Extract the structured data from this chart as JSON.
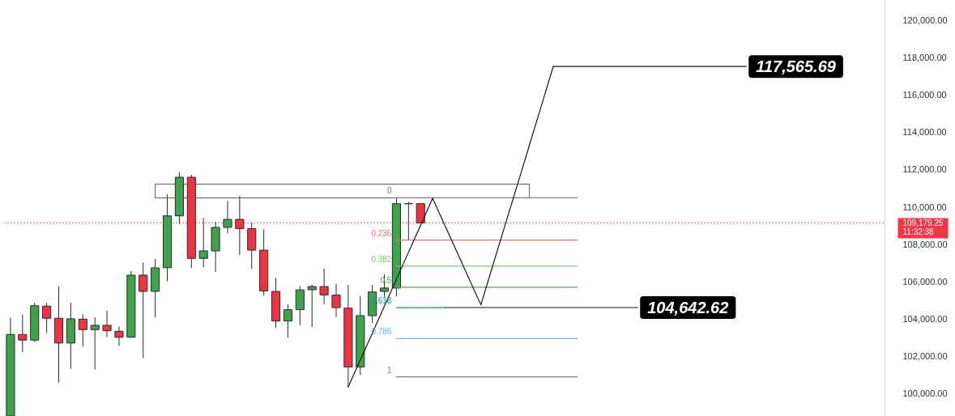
{
  "chart_data": {
    "type": "candlestick",
    "categories": [
      null,
      null,
      null,
      null,
      null,
      null,
      null,
      null,
      null,
      null,
      null,
      null,
      null,
      null,
      null,
      null,
      null,
      null,
      null,
      null,
      null,
      null,
      null,
      null,
      null,
      null,
      null,
      null,
      null,
      null,
      null,
      null,
      null,
      null,
      null,
      null,
      null,
      null,
      null,
      null,
      null,
      null,
      null,
      null,
      null,
      null,
      null,
      null,
      null,
      null,
      null,
      null,
      null,
      null,
      null,
      null,
      null,
      null,
      null,
      null,
      null,
      null,
      null,
      null,
      null,
      null,
      null,
      null,
      null,
      null,
      null,
      null,
      null
    ],
    "ohlc": [
      [
        98830,
        104090,
        98830,
        103200
      ],
      [
        103200,
        104280,
        102260,
        102900
      ],
      [
        102900,
        104900,
        102790,
        104740
      ],
      [
        104720,
        104900,
        103270,
        104070
      ],
      [
        104070,
        105770,
        100620,
        102740
      ],
      [
        102740,
        104900,
        101360,
        104040
      ],
      [
        104020,
        104280,
        102550,
        103460
      ],
      [
        103460,
        104120,
        101320,
        103690
      ],
      [
        103690,
        104470,
        103050,
        103400
      ],
      [
        103370,
        103630,
        102580,
        103050
      ],
      [
        103050,
        106600,
        103050,
        106380
      ],
      [
        106380,
        107060,
        101940,
        105510
      ],
      [
        105510,
        107250,
        104110,
        106770
      ],
      [
        106780,
        110720,
        106050,
        109560
      ],
      [
        109560,
        111900,
        109130,
        111630
      ],
      [
        111630,
        111760,
        106770,
        107280
      ],
      [
        107280,
        109450,
        106810,
        107680
      ],
      [
        107680,
        109240,
        106550,
        108940
      ],
      [
        108940,
        110360,
        108620,
        109370
      ],
      [
        109370,
        110640,
        107460,
        108880
      ],
      [
        108870,
        109200,
        106710,
        107720
      ],
      [
        107720,
        108840,
        105290,
        105540
      ],
      [
        105510,
        106240,
        103560,
        103920
      ],
      [
        103920,
        104820,
        103030,
        104530
      ],
      [
        104530,
        105800,
        103700,
        105590
      ],
      [
        105600,
        105870,
        103600,
        105770
      ],
      [
        105770,
        106740,
        104830,
        105320
      ],
      [
        105310,
        105920,
        104140,
        104640
      ],
      [
        104610,
        105850,
        100380,
        101460
      ],
      [
        101460,
        105260,
        101030,
        104210
      ],
      [
        104210,
        105850,
        103820,
        105480
      ],
      [
        105510,
        106410,
        105220,
        105690
      ],
      [
        105690,
        110530,
        105250,
        110210
      ],
      [
        110210,
        110310,
        108260,
        110210
      ],
      [
        110210,
        110210,
        109179.25,
        109179.25
      ],
      null,
      null,
      null,
      null,
      null,
      null,
      null,
      null,
      null,
      null,
      null,
      null,
      null,
      null,
      null,
      null,
      null,
      null,
      null,
      null,
      null,
      null,
      null,
      null,
      null,
      null,
      null,
      null,
      null,
      null,
      null,
      null,
      null,
      null,
      null,
      null,
      null,
      null
    ],
    "colors": [
      "#3fa34d",
      "#ef3340",
      "#3fa34d",
      "#ef3340",
      "#ef3340",
      "#3fa34d",
      "#ef3340",
      "#3fa34d",
      "#ef3340",
      "#ef3340",
      "#3fa34d",
      "#ef3340",
      "#3fa34d",
      "#3fa34d",
      "#3fa34d",
      "#ef3340",
      "#3fa34d",
      "#3fa34d",
      "#3fa34d",
      "#ef3340",
      "#ef3340",
      "#ef3340",
      "#ef3340",
      "#3fa34d",
      "#3fa34d",
      "#3fa34d",
      "#ef3340",
      "#ef3340",
      "#ef3340",
      "#3fa34d",
      "#3fa34d",
      "#3fa34d",
      "#3fa34d",
      "#2b2b2b",
      "#ef3340",
      null,
      null,
      null,
      null,
      null,
      null,
      null,
      null,
      null,
      null,
      null,
      null,
      null,
      null,
      null,
      null,
      null,
      null,
      null,
      null,
      null,
      null,
      null,
      null,
      null,
      null,
      null,
      null,
      null,
      null,
      null,
      null,
      null,
      null,
      null,
      null,
      null,
      null
    ],
    "ylim": [
      98830,
      121130
    ],
    "yticks": [
      {
        "value": 100000,
        "label": "100,000.00"
      },
      {
        "value": 102000,
        "label": "102,000.00"
      },
      {
        "value": 104000,
        "label": "104,000.00"
      },
      {
        "value": 106000,
        "label": "106,000.00"
      },
      {
        "value": 108000,
        "label": "108,000.00"
      },
      {
        "value": 110000,
        "label": "110,000.00"
      },
      {
        "value": 112000,
        "label": "112,000.00"
      },
      {
        "value": 114000,
        "label": "114,000.00"
      },
      {
        "value": 116000,
        "label": "116,000.00"
      },
      {
        "value": 118000,
        "label": "118,000.00"
      },
      {
        "value": 120000,
        "label": "120,000.00"
      }
    ],
    "tick_labels": "y",
    "ref_lines": [
      {
        "axis": "y",
        "value": 109179.25,
        "label": "109,179.25",
        "color": "#f23645",
        "line_style": "dotted"
      }
    ],
    "annotations": [
      "11:32:38"
    ],
    "series": [
      {
        "type": "line",
        "name": "0",
        "color": "#787b86",
        "values": [
          null,
          null,
          null,
          null,
          null,
          null,
          null,
          null,
          null,
          null,
          null,
          null,
          null,
          null,
          null,
          null,
          null,
          null,
          null,
          null,
          null,
          null,
          null,
          null,
          null,
          null,
          null,
          null,
          null,
          null,
          null,
          null,
          110530,
          110530,
          110530,
          110530,
          110530,
          110530,
          110530,
          110530,
          110530,
          110530,
          110530,
          110530,
          110530,
          110530,
          110530,
          110530,
          null,
          null,
          null,
          null,
          null,
          null,
          null,
          null,
          null,
          null,
          null,
          null,
          null,
          null,
          null,
          null,
          null,
          null,
          null,
          null,
          null,
          null,
          null,
          null,
          null
        ]
      },
      {
        "type": "line",
        "name": "0.236",
        "color": "#e57373",
        "values": [
          null,
          null,
          null,
          null,
          null,
          null,
          null,
          null,
          null,
          null,
          null,
          null,
          null,
          null,
          null,
          null,
          null,
          null,
          null,
          null,
          null,
          null,
          null,
          null,
          null,
          null,
          null,
          null,
          null,
          null,
          null,
          null,
          108260,
          108260,
          108260,
          108260,
          108260,
          108260,
          108260,
          108260,
          108260,
          108260,
          108260,
          108260,
          108260,
          108260,
          108260,
          108260,
          null,
          null,
          null,
          null,
          null,
          null,
          null,
          null,
          null,
          null,
          null,
          null,
          null,
          null,
          null,
          null,
          null,
          null,
          null,
          null,
          null,
          null,
          null,
          null,
          null
        ]
      },
      {
        "type": "line",
        "name": "0.382",
        "color": "#81c784",
        "values": [
          null,
          null,
          null,
          null,
          null,
          null,
          null,
          null,
          null,
          null,
          null,
          null,
          null,
          null,
          null,
          null,
          null,
          null,
          null,
          null,
          null,
          null,
          null,
          null,
          null,
          null,
          null,
          null,
          null,
          null,
          null,
          null,
          106860,
          106860,
          106860,
          106860,
          106860,
          106860,
          106860,
          106860,
          106860,
          106860,
          106860,
          106860,
          106860,
          106860,
          106860,
          106860,
          null,
          null,
          null,
          null,
          null,
          null,
          null,
          null,
          null,
          null,
          null,
          null,
          null,
          null,
          null,
          null,
          null,
          null,
          null,
          null,
          null,
          null,
          null,
          null,
          null
        ]
      },
      {
        "type": "line",
        "name": "0.5",
        "color": "#4caf50",
        "values": [
          null,
          null,
          null,
          null,
          null,
          null,
          null,
          null,
          null,
          null,
          null,
          null,
          null,
          null,
          null,
          null,
          null,
          null,
          null,
          null,
          null,
          null,
          null,
          null,
          null,
          null,
          null,
          null,
          null,
          null,
          null,
          null,
          105730,
          105730,
          105730,
          105730,
          105730,
          105730,
          105730,
          105730,
          105730,
          105730,
          105730,
          105730,
          105730,
          105730,
          105730,
          105730,
          null,
          null,
          null,
          null,
          null,
          null,
          null,
          null,
          null,
          null,
          null,
          null,
          null,
          null,
          null,
          null,
          null,
          null,
          null,
          null,
          null,
          null,
          null,
          null,
          null
        ]
      },
      {
        "type": "line",
        "name": "0.618",
        "color": "#089981",
        "values": [
          null,
          null,
          null,
          null,
          null,
          null,
          null,
          null,
          null,
          null,
          null,
          null,
          null,
          null,
          null,
          null,
          null,
          null,
          null,
          null,
          null,
          null,
          null,
          null,
          null,
          null,
          null,
          null,
          null,
          null,
          null,
          null,
          104640,
          104640,
          104640,
          104640,
          104640,
          null,
          null,
          null,
          null,
          null,
          null,
          null,
          null,
          null,
          null,
          null,
          null,
          null,
          null,
          null,
          null,
          null,
          null,
          null,
          null,
          null,
          null,
          null,
          null,
          null,
          null,
          null,
          null,
          null,
          null,
          null,
          null,
          null,
          null,
          null,
          null
        ]
      },
      {
        "type": "line",
        "name": "0.786",
        "color": "#64b5f6",
        "values": [
          null,
          null,
          null,
          null,
          null,
          null,
          null,
          null,
          null,
          null,
          null,
          null,
          null,
          null,
          null,
          null,
          null,
          null,
          null,
          null,
          null,
          null,
          null,
          null,
          null,
          null,
          null,
          null,
          null,
          null,
          null,
          null,
          102980,
          102980,
          102980,
          102980,
          102980,
          102980,
          102980,
          102980,
          102980,
          102980,
          102980,
          102980,
          102980,
          102980,
          102980,
          102980,
          null,
          null,
          null,
          null,
          null,
          null,
          null,
          null,
          null,
          null,
          null,
          null,
          null,
          null,
          null,
          null,
          null,
          null,
          null,
          null,
          null,
          null,
          null,
          null,
          null
        ]
      },
      {
        "type": "line",
        "name": "1",
        "color": "#787b86",
        "values": [
          null,
          null,
          null,
          null,
          null,
          null,
          null,
          null,
          null,
          null,
          null,
          null,
          null,
          null,
          null,
          null,
          null,
          null,
          null,
          null,
          null,
          null,
          null,
          null,
          null,
          null,
          null,
          null,
          null,
          null,
          null,
          null,
          100930,
          100930,
          100930,
          100930,
          100930,
          100930,
          100930,
          100930,
          100930,
          100930,
          100930,
          100930,
          100930,
          100930,
          100930,
          100930,
          null,
          null,
          null,
          null,
          null,
          null,
          null,
          null,
          null,
          null,
          null,
          null,
          null,
          null,
          null,
          null,
          null,
          null,
          null,
          null,
          null,
          null,
          null,
          null,
          null
        ]
      },
      {
        "type": "line",
        "color": "#131722",
        "values": [
          null,
          null,
          null,
          null,
          null,
          null,
          null,
          null,
          null,
          null,
          null,
          null,
          null,
          null,
          null,
          null,
          null,
          null,
          null,
          null,
          null,
          null,
          null,
          null,
          null,
          null,
          null,
          null,
          100380,
          101830,
          103270,
          104720,
          106160,
          107610,
          109050,
          110500,
          109070,
          107650,
          106220,
          104790,
          106920,
          109050,
          111170,
          113300,
          115430,
          117560,
          null,
          null,
          null,
          null,
          null,
          null,
          null,
          null,
          null,
          null,
          null,
          null,
          null,
          null,
          null,
          null,
          null,
          null,
          null,
          null,
          null,
          null,
          null,
          null,
          null,
          null,
          null
        ]
      },
      {
        "type": "line",
        "color": "#131722",
        "values": [
          null,
          null,
          null,
          null,
          null,
          null,
          null,
          null,
          null,
          null,
          null,
          null,
          null,
          null,
          null,
          null,
          null,
          null,
          null,
          null,
          null,
          null,
          null,
          null,
          null,
          null,
          null,
          null,
          null,
          null,
          null,
          null,
          null,
          null,
          null,
          null,
          104642.62,
          104642.62,
          104642.62,
          104642.62,
          104642.62,
          104642.62,
          104642.62,
          104642.62,
          104642.62,
          104642.62,
          104642.62,
          104642.62,
          104642.62,
          104642.62,
          104642.62,
          104642.62,
          104642.62,
          null,
          null,
          null,
          null,
          null,
          null,
          null,
          null,
          null,
          null,
          null,
          null,
          null,
          null,
          null,
          null,
          null,
          null,
          null,
          null
        ],
        "value_labels": [
          null,
          null,
          null,
          null,
          null,
          null,
          null,
          null,
          null,
          null,
          null,
          null,
          null,
          null,
          null,
          null,
          null,
          null,
          null,
          null,
          null,
          null,
          null,
          null,
          null,
          null,
          null,
          null,
          null,
          null,
          null,
          null,
          null,
          null,
          null,
          null,
          null,
          null,
          null,
          null,
          null,
          null,
          null,
          null,
          null,
          null,
          null,
          null,
          null,
          null,
          null,
          null,
          "104,642.62",
          null,
          null,
          null,
          null,
          null,
          null,
          null,
          null,
          null,
          null,
          null,
          null,
          null,
          null,
          null,
          null,
          null,
          null,
          null,
          null
        ]
      },
      {
        "type": "line",
        "color": "#131722",
        "values": [
          null,
          null,
          null,
          null,
          null,
          null,
          null,
          null,
          null,
          null,
          null,
          null,
          null,
          null,
          null,
          null,
          null,
          null,
          null,
          null,
          null,
          null,
          null,
          null,
          null,
          null,
          null,
          null,
          null,
          null,
          null,
          null,
          null,
          null,
          null,
          null,
          null,
          null,
          null,
          null,
          null,
          null,
          null,
          null,
          null,
          117565.69,
          117565.69,
          117565.69,
          117565.69,
          117565.69,
          117565.69,
          117565.69,
          117565.69,
          117565.69,
          117565.69,
          117565.69,
          117565.69,
          117565.69,
          117565.69,
          117565.69,
          117565.69,
          117565.69,
          null,
          null,
          null,
          null,
          null,
          null,
          null,
          null,
          null,
          null,
          null
        ],
        "value_labels": [
          null,
          null,
          null,
          null,
          null,
          null,
          null,
          null,
          null,
          null,
          null,
          null,
          null,
          null,
          null,
          null,
          null,
          null,
          null,
          null,
          null,
          null,
          null,
          null,
          null,
          null,
          null,
          null,
          null,
          null,
          null,
          null,
          null,
          null,
          null,
          null,
          null,
          null,
          null,
          null,
          null,
          null,
          null,
          null,
          null,
          null,
          null,
          null,
          null,
          null,
          null,
          null,
          null,
          null,
          null,
          null,
          null,
          null,
          null,
          null,
          null,
          "117,565.69",
          null,
          null,
          null,
          null,
          null,
          null,
          null,
          null,
          null,
          null,
          null
        ]
      }
    ]
  }
}
